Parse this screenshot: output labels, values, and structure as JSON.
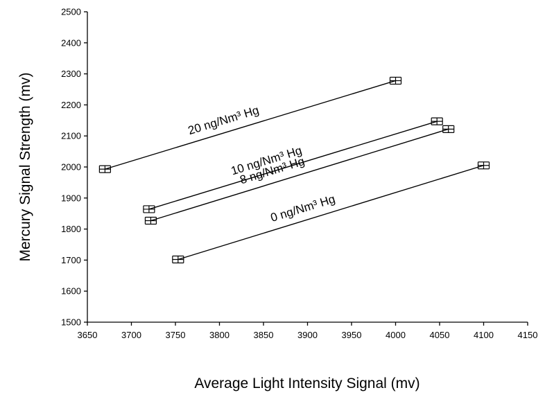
{
  "chart_data": {
    "type": "line",
    "title": "",
    "xlabel": "Average Light Intensity Signal (mv)",
    "ylabel": "Mercury Signal Strength (mv)",
    "xlim": [
      3650,
      4150
    ],
    "ylim": [
      1500,
      2500
    ],
    "xticks": [
      "3650",
      "3700",
      "3750",
      "3800",
      "3850",
      "3900",
      "3950",
      "4000",
      "4050",
      "4100",
      "4150"
    ],
    "yticks": [
      "1500",
      "1600",
      "1700",
      "1800",
      "1900",
      "2000",
      "2100",
      "2200",
      "2300",
      "2400",
      "2500"
    ],
    "grid": false,
    "legend": "none",
    "error_bars": true,
    "series": [
      {
        "name": "20 ng/Nm³ Hg",
        "points": [
          [
            3670,
            1993
          ],
          [
            4000,
            2278
          ]
        ]
      },
      {
        "name": "10 ng/Nm³ Hg",
        "points": [
          [
            3720,
            1864
          ],
          [
            4047,
            2147
          ]
        ]
      },
      {
        "name": "8 ng/Nm³ Hg",
        "points": [
          [
            3722,
            1827
          ],
          [
            4060,
            2122
          ]
        ]
      },
      {
        "name": "0 ng/Nm³ Hg",
        "points": [
          [
            3753,
            1702
          ],
          [
            4100,
            2005
          ]
        ]
      }
    ]
  }
}
